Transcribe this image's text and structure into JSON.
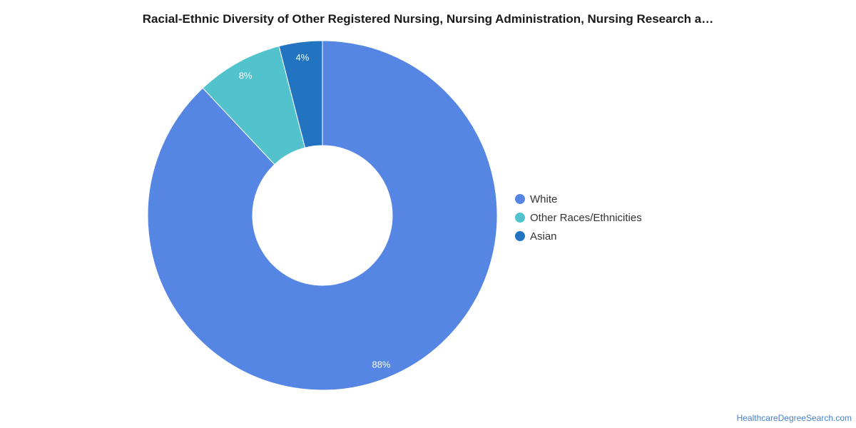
{
  "chart_data": {
    "type": "pie",
    "variant": "donut",
    "title": "Racial-Ethnic Diversity of Other Registered Nursing, Nursing Administration, Nursing Research a…",
    "slices": [
      {
        "name": "White",
        "value": 88,
        "label": "88%",
        "color": "#5586e3"
      },
      {
        "name": "Other Races/Ethnicities",
        "value": 8,
        "label": "8%",
        "color": "#52c2cc"
      },
      {
        "name": "Asian",
        "value": 4,
        "label": "4%",
        "color": "#2274c0"
      }
    ],
    "legend_position": "right"
  },
  "footer": {
    "source": "HealthcareDegreeSearch.com"
  }
}
